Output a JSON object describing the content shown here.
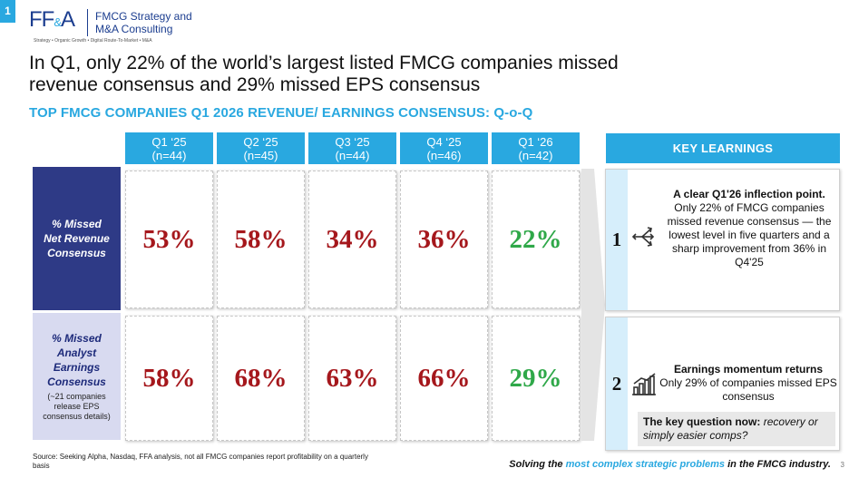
{
  "slide_number": "1",
  "logo": {
    "mark": "FF",
    "amp": "&",
    "mark_end": "A",
    "name_line1": "FMCG Strategy and",
    "name_line2": "M&A Consulting",
    "tagline": "Strategy • Organic Growth • Digital Route-To-Market • M&A"
  },
  "headline_line1": "In Q1, only 22% of the world’s largest listed FMCG companies missed",
  "headline_line2": "revenue consensus and 29% missed EPS consensus",
  "subtitle": "TOP FMCG COMPANIES Q1 2026 REVENUE/ EARNINGS CONSENSUS: Q-o-Q",
  "columns": [
    {
      "quarter": "Q1 ‘25",
      "n": "(n=44)"
    },
    {
      "quarter": "Q2 ‘25",
      "n": "(n=45)"
    },
    {
      "quarter": "Q3 ‘25",
      "n": "(n=44)"
    },
    {
      "quarter": "Q4 ‘25",
      "n": "(n=46)"
    },
    {
      "quarter": "Q1 ‘26",
      "n": "(n=42)"
    }
  ],
  "rows": [
    {
      "label_line1": "% Missed",
      "label_line2": "Net Revenue",
      "label_line3": "Consensus",
      "values": [
        "53%",
        "58%",
        "34%",
        "36%",
        "22%"
      ]
    },
    {
      "label_line1": "% Missed",
      "label_line2": "Analyst",
      "label_line3": "Earnings",
      "label_line4": "Consensus",
      "note_line1": "(~21 companies",
      "note_line2": "release EPS",
      "note_line3": "consensus details)",
      "values": [
        "58%",
        "68%",
        "63%",
        "66%",
        "29%"
      ]
    }
  ],
  "colors": {
    "accent": "#29a8e0",
    "navy": "#2e3a86",
    "miss_red": "#a5171c",
    "good_green": "#2fa849"
  },
  "key_learnings": {
    "header": "KEY LEARNINGS",
    "items": [
      {
        "number": "1",
        "icon": "split-arrows-icon",
        "bold": "A clear Q1'26 inflection point.",
        "text": " Only 22% of FMCG companies missed revenue consensus — the lowest level in five quarters and a sharp improvement from 36% in Q4'25"
      },
      {
        "number": "2",
        "icon": "bar-growth-icon",
        "bold": "Earnings momentum returns",
        "text": "Only 29% of companies missed EPS consensus",
        "question_bold": "The key question now:",
        "question_text": " recovery or simply easier comps?"
      }
    ]
  },
  "source": "Source: Seeking Alpha, Nasdaq, FFA analysis, not all FMCG companies report profitability on a quarterly basis",
  "footer": {
    "pre": "Solving the ",
    "highlight": "most complex strategic problems",
    "post": " in the FMCG industry."
  },
  "page_number": "3"
}
